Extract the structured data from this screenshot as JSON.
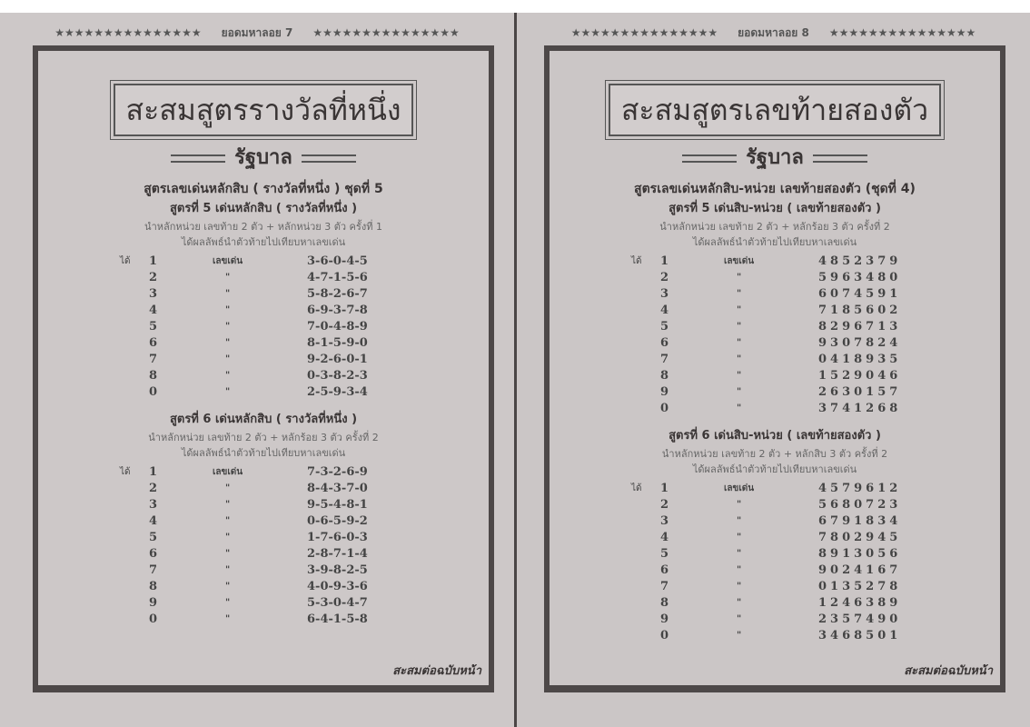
{
  "left_page": {
    "header": {
      "stars_left": "★★★★★★★★★★★★★★★",
      "title": "ยอดมหาลอย 7",
      "stars_right": "★★★★★★★★★★★★★★★"
    },
    "title": "สะสมสูตรรางวัลที่หนึ่ง",
    "subtitle": "รัฐบาล",
    "heading": "สูตรเลขเด่นหลักสิบ ( รางวัลที่หนึ่ง ) ชุดที่ 5",
    "formulas": [
      {
        "title": "สูตรที่ 5 เด่นหลักสิบ ( รางวัลที่หนึ่ง )",
        "note1": "นำหลักหน่วย เลขท้าย 2 ตัว + หลักหน่วย 3 ตัว ครั้งที่ 1",
        "note2": "ได้ผลลัพธ์นำตัวท้ายไปเทียบหาเลขเด่น",
        "got_label": "ได้",
        "first_label": "เลขเด่น",
        "ditto": "\"",
        "rows": [
          [
            "1",
            "3-6-0-4-5"
          ],
          [
            "2",
            "4-7-1-5-6"
          ],
          [
            "3",
            "5-8-2-6-7"
          ],
          [
            "4",
            "6-9-3-7-8"
          ],
          [
            "5",
            "7-0-4-8-9"
          ],
          [
            "6",
            "8-1-5-9-0"
          ],
          [
            "7",
            "9-2-6-0-1"
          ],
          [
            "8",
            "0-3-8-2-3"
          ],
          [
            "0",
            "2-5-9-3-4"
          ]
        ]
      },
      {
        "title": "สูตรที่ 6 เด่นหลักสิบ ( รางวัลที่หนึ่ง )",
        "note1": "นำหลักหน่วย เลขท้าย 2 ตัว + หลักร้อย 3 ตัว ครั้งที่ 2",
        "note2": "ได้ผลลัพธ์นำตัวท้ายไปเทียบหาเลขเด่น",
        "got_label": "ได้",
        "first_label": "เลขเด่น",
        "ditto": "\"",
        "rows": [
          [
            "1",
            "7-3-2-6-9"
          ],
          [
            "2",
            "8-4-3-7-0"
          ],
          [
            "3",
            "9-5-4-8-1"
          ],
          [
            "4",
            "0-6-5-9-2"
          ],
          [
            "5",
            "1-7-6-0-3"
          ],
          [
            "6",
            "2-8-7-1-4"
          ],
          [
            "7",
            "3-9-8-2-5"
          ],
          [
            "8",
            "4-0-9-3-6"
          ],
          [
            "9",
            "5-3-0-4-7"
          ],
          [
            "0",
            "6-4-1-5-8"
          ]
        ]
      }
    ],
    "footer": "สะสมต่อฉบับหน้า"
  },
  "right_page": {
    "header": {
      "stars_left": "★★★★★★★★★★★★★★★",
      "title": "ยอดมหาลอย 8",
      "stars_right": "★★★★★★★★★★★★★★★"
    },
    "title": "สะสมสูตรเลขท้ายสองตัว",
    "subtitle": "รัฐบาล",
    "heading": "สูตรเลขเด่นหลักสิบ-หน่วย   เลขท้ายสองตัว (ชุดที่ 4)",
    "formulas": [
      {
        "title": "สูตรที่ 5 เด่นสิบ-หน่วย ( เลขท้ายสองตัว )",
        "note1": "นำหลักหน่วย เลขท้าย 2 ตัว + หลักร้อย 3 ตัว ครั้งที่ 2",
        "note2": "ได้ผลลัพธ์นำตัวท้ายไปเทียบหาเลขเด่น",
        "got_label": "ได้",
        "first_label": "เลขเด่น",
        "ditto": "\"",
        "rows": [
          [
            "1",
            "4852379"
          ],
          [
            "2",
            "5963480"
          ],
          [
            "3",
            "6074591"
          ],
          [
            "4",
            "7185602"
          ],
          [
            "5",
            "8296713"
          ],
          [
            "6",
            "9307824"
          ],
          [
            "7",
            "0418935"
          ],
          [
            "8",
            "1529046"
          ],
          [
            "9",
            "2630157"
          ],
          [
            "0",
            "3741268"
          ]
        ]
      },
      {
        "title": "สูตรที่ 6 เด่นสิบ-หน่วย ( เลขท้ายสองตัว )",
        "note1": "นำหลักหน่วย เลขท้าย 2 ตัว + หลักสิบ 3 ตัว ครั้งที่ 2",
        "note2": "ได้ผลลัพธ์นำตัวท้ายไปเทียบหาเลขเด่น",
        "got_label": "ได้",
        "first_label": "เลขเด่น",
        "ditto": "\"",
        "rows": [
          [
            "1",
            "4579612"
          ],
          [
            "2",
            "5680723"
          ],
          [
            "3",
            "6791834"
          ],
          [
            "4",
            "7802945"
          ],
          [
            "5",
            "8913056"
          ],
          [
            "6",
            "9024167"
          ],
          [
            "7",
            "0135278"
          ],
          [
            "8",
            "1246389"
          ],
          [
            "9",
            "2357490"
          ],
          [
            "0",
            "3468501"
          ]
        ]
      }
    ],
    "footer": "สะสมต่อฉบับหน้า"
  }
}
